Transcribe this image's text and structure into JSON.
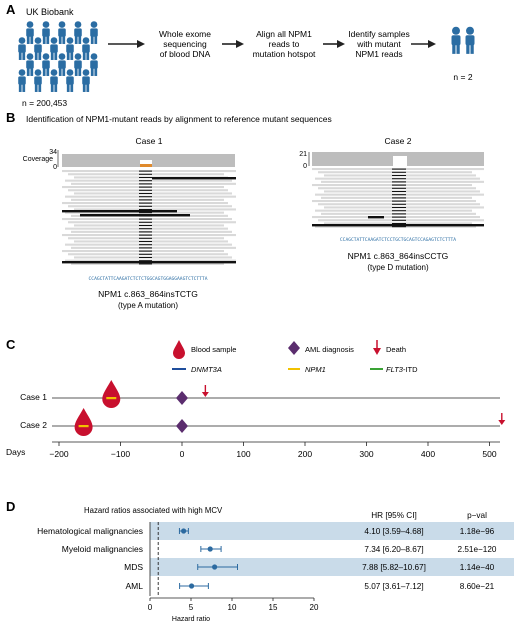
{
  "panel_a": {
    "label": "A",
    "source": "UK Biobank",
    "n_cohort": "n = 200,453",
    "steps": [
      [
        "Whole exome",
        "sequencing",
        "of blood DNA"
      ],
      [
        "Align all NPM1",
        "reads to",
        "mutation hotspot"
      ],
      [
        "Identify samples",
        "with mutant",
        "NPM1 reads"
      ]
    ],
    "n_result": "n = 2"
  },
  "panel_b": {
    "label": "B",
    "title": "Identification of NPM1-mutant reads by alignment to reference mutant sequences",
    "case1": {
      "title": "Case 1",
      "coverage_label": "Coverage",
      "cov_max": "34",
      "cov_min": "0",
      "sequence": "CCAGCTATTCAAGATCTCTCTGGCAGTGGAGGAAGTCTCTTTA",
      "mutation": "NPM1 c.863_864insTCTG",
      "type": "(type A mutation)"
    },
    "case2": {
      "title": "Case 2",
      "cov_max": "21",
      "cov_min": "0",
      "sequence": "CCAGCTATTCAAGATCTCCTGCTGCAGTCCAGAGTCTCTTTA",
      "mutation": "NPM1 c.863_864insCCTG",
      "type": "(type D mutation)"
    }
  },
  "panel_c": {
    "label": "C",
    "legend": {
      "blood": "Blood sample",
      "aml": "AML diagnosis",
      "death": "Death",
      "dnmt3a": "DNMT3A",
      "npm1": "NPM1",
      "flt3": "FLT3",
      "flt3_suffix": "-ITD"
    },
    "case_labels": [
      "Case 1",
      "Case 2"
    ],
    "axis_label": "Days",
    "ticks": [
      "−200",
      "−100",
      "0",
      "100",
      "200",
      "300",
      "400",
      "500"
    ],
    "colors": {
      "blood": "#c8102e",
      "aml": "#5b2d6e",
      "death": "#c8102e",
      "dnmt3a": "#1f4e9c",
      "npm1": "#f2c200",
      "flt3": "#3aa335"
    },
    "events": {
      "case1": {
        "blood_day": -115,
        "aml_day": 0,
        "death_day": 38
      },
      "case2": {
        "blood_day": -160,
        "aml_day": 0,
        "death_day": 520
      }
    }
  },
  "panel_d": {
    "label": "D",
    "title": "Hazard ratios associated with high MCV",
    "col_hr": "HR [95% CI]",
    "col_p": "p−val",
    "xlabel": "Hazard ratio",
    "ticks": [
      "0",
      "5",
      "10",
      "15",
      "20"
    ]
  },
  "chart_data": {
    "type": "forest",
    "title": "Hazard ratios associated with high MCV",
    "xlabel": "Hazard ratio",
    "xlim": [
      0,
      22
    ],
    "reference_line": 1,
    "rows": [
      {
        "label": "Hematological malignancies",
        "hr": 4.1,
        "lo": 3.59,
        "hi": 4.68,
        "ci_text": "4.10 [3.59–4.68]",
        "p": "1.18e−96"
      },
      {
        "label": "Myeloid malignancies",
        "hr": 7.34,
        "lo": 6.2,
        "hi": 8.67,
        "ci_text": "7.34 [6.20–8.67]",
        "p": "2.51e−120"
      },
      {
        "label": "MDS",
        "hr": 7.88,
        "lo": 5.82,
        "hi": 10.67,
        "ci_text": "7.88 [5.82–10.67]",
        "p": "1.14e−40"
      },
      {
        "label": "AML",
        "hr": 5.07,
        "lo": 3.61,
        "hi": 7.12,
        "ci_text": "5.07 [3.61–7.12]",
        "p": "8.60e−21"
      }
    ],
    "colors": {
      "band": "#c9dbe9",
      "point": "#2c6aa0"
    }
  }
}
